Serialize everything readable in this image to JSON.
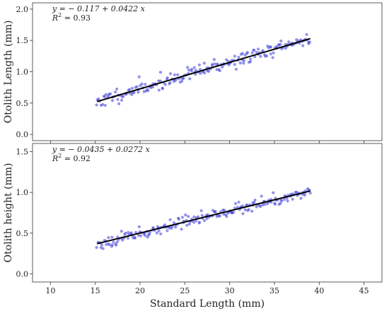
{
  "chart_data": [
    {
      "type": "scatter",
      "ylabel": "Otolith Length (mm)",
      "xlabel": "",
      "xlim": [
        8,
        47
      ],
      "ylim": [
        -0.1,
        2.1
      ],
      "xticks": [
        10,
        15,
        20,
        25,
        30,
        35,
        40,
        45
      ],
      "yticks": [
        0.0,
        0.5,
        1.0,
        1.5,
        2.0
      ],
      "ytick_labels": [
        "0.0",
        "0.5",
        "1.0",
        "1.5",
        "2.0"
      ],
      "show_x_tick_labels": false,
      "equation": "y = − 0.117 + 0.0422 x",
      "r2_label": "R",
      "r2_value": "= 0.93",
      "fit": {
        "intercept": -0.117,
        "slope": 0.0422,
        "x_range": [
          15.2,
          39.0
        ]
      },
      "point_color": "#4b4bdc",
      "line_color": "#000000",
      "points": {
        "n": 200,
        "x_range": [
          15.2,
          39.0
        ],
        "noise_sd": 0.055,
        "seed": 11
      }
    },
    {
      "type": "scatter",
      "ylabel": "Otolith height (mm)",
      "xlabel": "Standard Length (mm)",
      "xlim": [
        8,
        47
      ],
      "ylim": [
        -0.1,
        1.6
      ],
      "xticks": [
        10,
        15,
        20,
        25,
        30,
        35,
        40,
        45
      ],
      "yticks": [
        0.0,
        0.5,
        1.0,
        1.5
      ],
      "ytick_labels": [
        "0.0",
        "0.5",
        "1.0",
        "1.5"
      ],
      "show_x_tick_labels": true,
      "equation": "y = − 0.0435 + 0.0272 x",
      "r2_label": "R",
      "r2_value": "= 0.92",
      "fit": {
        "intercept": -0.0435,
        "slope": 0.0272,
        "x_range": [
          15.2,
          39.0
        ]
      },
      "point_color": "#4b4bdc",
      "line_color": "#000000",
      "points": {
        "n": 200,
        "x_range": [
          15.2,
          39.0
        ],
        "noise_sd": 0.035,
        "seed": 23
      }
    }
  ]
}
